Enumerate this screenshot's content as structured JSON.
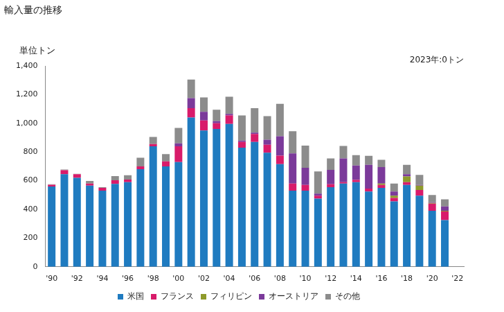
{
  "chart_data": {
    "type": "bar",
    "title": "輸入量の推移",
    "ylabel": "単位トン",
    "annotations": [
      "2023年:0トン"
    ],
    "stacked": true,
    "grid": false,
    "legend": "bottom",
    "categories": [
      "'90",
      null,
      "'92",
      null,
      "'94",
      null,
      "'96",
      null,
      "'98",
      null,
      "'00",
      null,
      "'02",
      null,
      "'04",
      null,
      "'06",
      null,
      "'08",
      null,
      "'10",
      null,
      "'12",
      null,
      "'14",
      null,
      "'16",
      null,
      "'18",
      null,
      "'20",
      null,
      "'22"
    ],
    "series": [
      {
        "name": "米国",
        "color": "#1f7bc0",
        "values": [
          560,
          645,
          620,
          565,
          530,
          578,
          590,
          680,
          840,
          700,
          730,
          1040,
          950,
          960,
          995,
          830,
          870,
          795,
          715,
          530,
          530,
          475,
          555,
          580,
          590,
          525,
          550,
          455,
          570,
          495,
          390,
          325,
          null
        ]
      },
      {
        "name": "フランス",
        "color": "#d81b6a",
        "values": [
          12,
          28,
          25,
          15,
          20,
          25,
          18,
          20,
          15,
          35,
          110,
          65,
          70,
          40,
          60,
          40,
          55,
          55,
          60,
          50,
          40,
          20,
          20,
          10,
          15,
          20,
          20,
          25,
          20,
          40,
          50,
          60,
          null
        ]
      },
      {
        "name": "フィリピン",
        "color": "#8e9a2b",
        "values": [
          0,
          0,
          0,
          0,
          0,
          0,
          0,
          0,
          0,
          0,
          0,
          0,
          0,
          0,
          0,
          0,
          0,
          0,
          0,
          0,
          0,
          0,
          0,
          0,
          0,
          0,
          10,
          15,
          40,
          30,
          5,
          5,
          null
        ]
      },
      {
        "name": "オーストリア",
        "color": "#7b3a9a",
        "values": [
          0,
          0,
          0,
          0,
          0,
          0,
          0,
          0,
          0,
          0,
          20,
          70,
          60,
          15,
          10,
          10,
          10,
          35,
          135,
          210,
          120,
          15,
          100,
          165,
          100,
          165,
          115,
          30,
          15,
          5,
          5,
          30,
          null
        ]
      },
      {
        "name": "その他",
        "color": "#8c8c8c",
        "values": [
          3,
          5,
          3,
          18,
          5,
          29,
          30,
          60,
          50,
          50,
          108,
          130,
          100,
          80,
          120,
          175,
          170,
          165,
          225,
          155,
          155,
          155,
          80,
          87,
          73,
          63,
          50,
          55,
          65,
          70,
          50,
          50,
          null
        ]
      }
    ],
    "ylim": [
      0,
      1400
    ],
    "yticks": [
      0,
      200,
      400,
      600,
      800,
      {
        "value": 1000,
        "label": "1,000"
      },
      {
        "value": 1200,
        "label": "1,200"
      },
      {
        "value": 1400,
        "label": "1,400"
      }
    ]
  }
}
